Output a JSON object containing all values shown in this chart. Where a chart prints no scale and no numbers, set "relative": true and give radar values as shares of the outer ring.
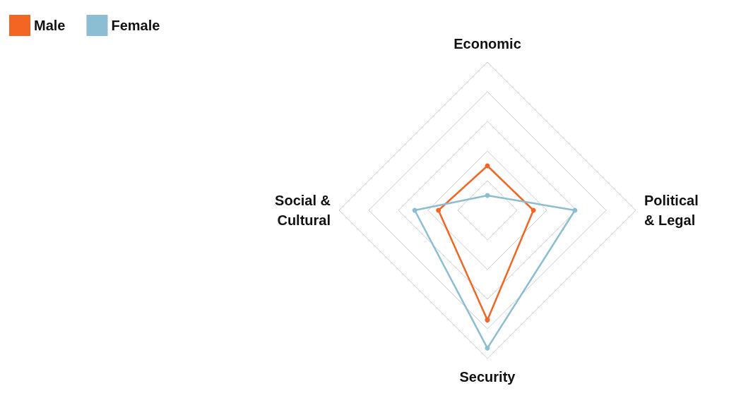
{
  "chart_data": {
    "type": "radar",
    "relative": true,
    "categories": [
      "Economic",
      "Political\n& Legal",
      "Security",
      "Social &\nCultural"
    ],
    "series": [
      {
        "name": "Male",
        "color": "#f26522",
        "values": [
          0.3,
          0.31,
          0.74,
          0.33
        ]
      },
      {
        "name": "Female",
        "color": "#8bbdd3",
        "values": [
          0.1,
          0.59,
          0.93,
          0.49
        ]
      }
    ],
    "grid": true,
    "legend": "top left",
    "marker": "circle",
    "line_style": "solid"
  }
}
